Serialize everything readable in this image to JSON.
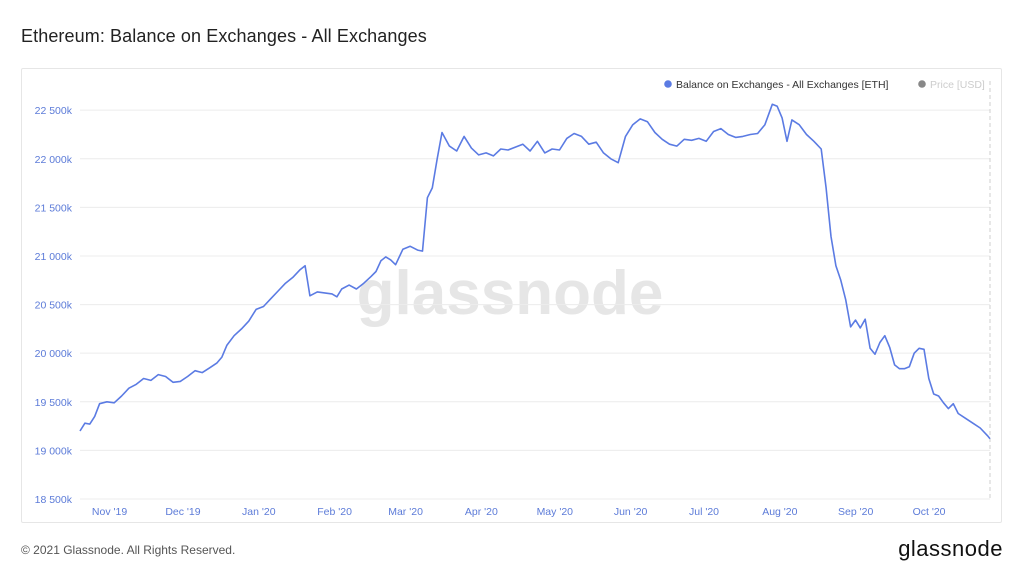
{
  "title": "Ethereum: Balance on Exchanges - All Exchanges",
  "footer": {
    "copyright": "© 2021 Glassnode. All Rights Reserved.",
    "brand": "glassnode"
  },
  "watermark": "glassnode",
  "colors": {
    "series": "#5b7be3",
    "ytick": "#5c7bd8",
    "price_legend": "#cccccc",
    "grid": "#ececec"
  },
  "chart_data": {
    "type": "line",
    "title": "Ethereum: Balance on Exchanges - All Exchanges",
    "xlabel": "",
    "ylabel": "",
    "ylim": [
      18500,
      22800
    ],
    "grid": true,
    "legend_position": "top-right",
    "legend": [
      {
        "name": "Balance on Exchanges - All Exchanges [ETH]",
        "color": "#5b7be3",
        "active": true
      },
      {
        "name": "Price [USD]",
        "color": "#888888",
        "active": false
      }
    ],
    "y_ticks": [
      {
        "value": 18500,
        "label": "18 500k"
      },
      {
        "value": 19000,
        "label": "19 000k"
      },
      {
        "value": 19500,
        "label": "19 500k"
      },
      {
        "value": 20000,
        "label": "20 000k"
      },
      {
        "value": 20500,
        "label": "20 500k"
      },
      {
        "value": 21000,
        "label": "21 000k"
      },
      {
        "value": 21500,
        "label": "21 500k"
      },
      {
        "value": 22000,
        "label": "22 000k"
      },
      {
        "value": 22500,
        "label": "22 500k"
      }
    ],
    "x_ticks": [
      {
        "date": "2019-11-01",
        "label": "Nov '19"
      },
      {
        "date": "2019-12-01",
        "label": "Dec '19"
      },
      {
        "date": "2020-01-01",
        "label": "Jan '20"
      },
      {
        "date": "2020-02-01",
        "label": "Feb '20"
      },
      {
        "date": "2020-03-01",
        "label": "Mar '20"
      },
      {
        "date": "2020-04-01",
        "label": "Apr '20"
      },
      {
        "date": "2020-05-01",
        "label": "May '20"
      },
      {
        "date": "2020-06-01",
        "label": "Jun '20"
      },
      {
        "date": "2020-07-01",
        "label": "Jul '20"
      },
      {
        "date": "2020-08-01",
        "label": "Aug '20"
      },
      {
        "date": "2020-09-01",
        "label": "Sep '20"
      },
      {
        "date": "2020-10-01",
        "label": "Oct '20"
      }
    ],
    "x_range": [
      "2019-10-24",
      "2020-10-30"
    ],
    "series": [
      {
        "name": "Balance on Exchanges - All Exchanges [ETH]",
        "unit": "thousand ETH",
        "points": [
          [
            "2019-10-24",
            19200
          ],
          [
            "2019-10-26",
            19280
          ],
          [
            "2019-10-28",
            19270
          ],
          [
            "2019-10-30",
            19350
          ],
          [
            "2019-11-01",
            19480
          ],
          [
            "2019-11-04",
            19500
          ],
          [
            "2019-11-07",
            19490
          ],
          [
            "2019-11-10",
            19560
          ],
          [
            "2019-11-13",
            19640
          ],
          [
            "2019-11-16",
            19680
          ],
          [
            "2019-11-19",
            19740
          ],
          [
            "2019-11-22",
            19720
          ],
          [
            "2019-11-25",
            19780
          ],
          [
            "2019-11-28",
            19760
          ],
          [
            "2019-12-01",
            19700
          ],
          [
            "2019-12-04",
            19710
          ],
          [
            "2019-12-07",
            19760
          ],
          [
            "2019-12-10",
            19820
          ],
          [
            "2019-12-13",
            19800
          ],
          [
            "2019-12-16",
            19850
          ],
          [
            "2019-12-19",
            19900
          ],
          [
            "2019-12-21",
            19960
          ],
          [
            "2019-12-23",
            20080
          ],
          [
            "2019-12-26",
            20180
          ],
          [
            "2019-12-29",
            20250
          ],
          [
            "2020-01-01",
            20330
          ],
          [
            "2020-01-04",
            20450
          ],
          [
            "2020-01-07",
            20480
          ],
          [
            "2020-01-10",
            20560
          ],
          [
            "2020-01-13",
            20640
          ],
          [
            "2020-01-16",
            20720
          ],
          [
            "2020-01-19",
            20780
          ],
          [
            "2020-01-22",
            20860
          ],
          [
            "2020-01-24",
            20900
          ],
          [
            "2020-01-26",
            20590
          ],
          [
            "2020-01-29",
            20630
          ],
          [
            "2020-02-01",
            20620
          ],
          [
            "2020-02-04",
            20610
          ],
          [
            "2020-02-06",
            20580
          ],
          [
            "2020-02-08",
            20660
          ],
          [
            "2020-02-11",
            20700
          ],
          [
            "2020-02-14",
            20660
          ],
          [
            "2020-02-17",
            20720
          ],
          [
            "2020-02-20",
            20790
          ],
          [
            "2020-02-22",
            20840
          ],
          [
            "2020-02-24",
            20950
          ],
          [
            "2020-02-26",
            20990
          ],
          [
            "2020-02-28",
            20960
          ],
          [
            "2020-03-01",
            20910
          ],
          [
            "2020-03-04",
            21070
          ],
          [
            "2020-03-07",
            21100
          ],
          [
            "2020-03-10",
            21060
          ],
          [
            "2020-03-12",
            21050
          ],
          [
            "2020-03-14",
            21600
          ],
          [
            "2020-03-16",
            21700
          ],
          [
            "2020-03-18",
            22000
          ],
          [
            "2020-03-20",
            22270
          ],
          [
            "2020-03-23",
            22130
          ],
          [
            "2020-03-26",
            22080
          ],
          [
            "2020-03-29",
            22230
          ],
          [
            "2020-04-01",
            22110
          ],
          [
            "2020-04-04",
            22040
          ],
          [
            "2020-04-07",
            22060
          ],
          [
            "2020-04-10",
            22030
          ],
          [
            "2020-04-13",
            22100
          ],
          [
            "2020-04-16",
            22090
          ],
          [
            "2020-04-19",
            22120
          ],
          [
            "2020-04-22",
            22150
          ],
          [
            "2020-04-25",
            22080
          ],
          [
            "2020-04-28",
            22180
          ],
          [
            "2020-05-01",
            22060
          ],
          [
            "2020-05-04",
            22100
          ],
          [
            "2020-05-07",
            22090
          ],
          [
            "2020-05-10",
            22210
          ],
          [
            "2020-05-13",
            22260
          ],
          [
            "2020-05-16",
            22230
          ],
          [
            "2020-05-19",
            22150
          ],
          [
            "2020-05-22",
            22170
          ],
          [
            "2020-05-25",
            22060
          ],
          [
            "2020-05-28",
            22000
          ],
          [
            "2020-05-31",
            21960
          ],
          [
            "2020-06-03",
            22230
          ],
          [
            "2020-06-06",
            22350
          ],
          [
            "2020-06-09",
            22410
          ],
          [
            "2020-06-12",
            22380
          ],
          [
            "2020-06-15",
            22270
          ],
          [
            "2020-06-18",
            22200
          ],
          [
            "2020-06-21",
            22150
          ],
          [
            "2020-06-24",
            22130
          ],
          [
            "2020-06-27",
            22200
          ],
          [
            "2020-06-30",
            22190
          ],
          [
            "2020-07-03",
            22210
          ],
          [
            "2020-07-06",
            22180
          ],
          [
            "2020-07-09",
            22280
          ],
          [
            "2020-07-12",
            22310
          ],
          [
            "2020-07-15",
            22250
          ],
          [
            "2020-07-18",
            22220
          ],
          [
            "2020-07-21",
            22230
          ],
          [
            "2020-07-24",
            22250
          ],
          [
            "2020-07-27",
            22260
          ],
          [
            "2020-07-30",
            22350
          ],
          [
            "2020-08-02",
            22560
          ],
          [
            "2020-08-04",
            22540
          ],
          [
            "2020-08-06",
            22420
          ],
          [
            "2020-08-08",
            22180
          ],
          [
            "2020-08-10",
            22400
          ],
          [
            "2020-08-13",
            22350
          ],
          [
            "2020-08-16",
            22250
          ],
          [
            "2020-08-19",
            22180
          ],
          [
            "2020-08-22",
            22100
          ],
          [
            "2020-08-24",
            21700
          ],
          [
            "2020-08-26",
            21200
          ],
          [
            "2020-08-28",
            20900
          ],
          [
            "2020-08-30",
            20750
          ],
          [
            "2020-09-01",
            20550
          ],
          [
            "2020-09-03",
            20270
          ],
          [
            "2020-09-05",
            20340
          ],
          [
            "2020-09-07",
            20260
          ],
          [
            "2020-09-09",
            20350
          ],
          [
            "2020-09-11",
            20050
          ],
          [
            "2020-09-13",
            19990
          ],
          [
            "2020-09-15",
            20110
          ],
          [
            "2020-09-17",
            20180
          ],
          [
            "2020-09-19",
            20060
          ],
          [
            "2020-09-21",
            19880
          ],
          [
            "2020-09-23",
            19840
          ],
          [
            "2020-09-25",
            19840
          ],
          [
            "2020-09-27",
            19860
          ],
          [
            "2020-09-29",
            20000
          ],
          [
            "2020-10-01",
            20050
          ],
          [
            "2020-10-03",
            20040
          ],
          [
            "2020-10-05",
            19740
          ],
          [
            "2020-10-07",
            19580
          ],
          [
            "2020-10-09",
            19560
          ],
          [
            "2020-10-11",
            19490
          ],
          [
            "2020-10-13",
            19430
          ],
          [
            "2020-10-15",
            19480
          ],
          [
            "2020-10-17",
            19380
          ],
          [
            "2020-10-20",
            19330
          ],
          [
            "2020-10-23",
            19280
          ],
          [
            "2020-10-26",
            19230
          ],
          [
            "2020-10-29",
            19150
          ],
          [
            "2020-10-30",
            19120
          ]
        ]
      }
    ]
  }
}
